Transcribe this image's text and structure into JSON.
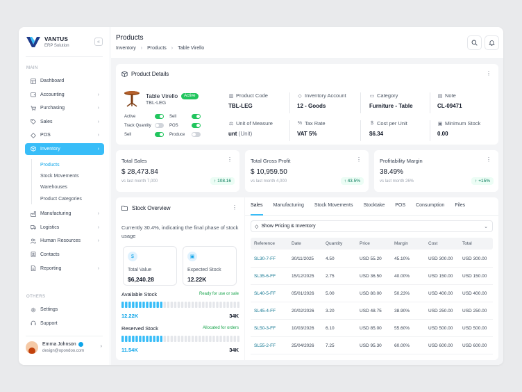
{
  "brand": {
    "name": "VANTUS",
    "subtitle": "ERP Solution",
    "collapse": "«"
  },
  "sidebar": {
    "main_label": "MAIN",
    "items": [
      {
        "label": "Dashboard"
      },
      {
        "label": "Accounting"
      },
      {
        "label": "Purchasing"
      },
      {
        "label": "Sales"
      },
      {
        "label": "POS"
      },
      {
        "label": "Inventory"
      }
    ],
    "inventory_sub": [
      {
        "label": "Products"
      },
      {
        "label": "Stock Movements"
      },
      {
        "label": "Warehouses"
      },
      {
        "label": "Product Categories"
      }
    ],
    "items2": [
      {
        "label": "Manufacturing"
      },
      {
        "label": "Logistics"
      },
      {
        "label": "Human Resources"
      },
      {
        "label": "Contacts"
      },
      {
        "label": "Reporting"
      }
    ],
    "others_label": "OTHERS",
    "others": [
      {
        "label": "Settings"
      },
      {
        "label": "Support"
      }
    ]
  },
  "user": {
    "name": "Emma Johnson",
    "email": "design@opondoo.com"
  },
  "header": {
    "title": "Products",
    "breadcrumb": [
      "Inventory",
      "Products",
      "Table Virello"
    ]
  },
  "product": {
    "section_title": "Product Details",
    "name": "Table Virello",
    "status": "Active",
    "code": "TBL-LEG",
    "toggles": [
      {
        "label": "Active",
        "on": true
      },
      {
        "label": "Sell",
        "on": true
      },
      {
        "label": "Track Quantity",
        "on": false
      },
      {
        "label": "POS",
        "on": true
      },
      {
        "label": "Sell",
        "on": true
      },
      {
        "label": "Produce",
        "on": false
      }
    ],
    "fields": [
      {
        "label": "Product Code",
        "value": "TBL-LEG",
        "icon": "barcode-icon"
      },
      {
        "label": "Inventory Account",
        "value": "12 - Goods",
        "icon": "tag-icon"
      },
      {
        "label": "Category",
        "value": "Furniture - Table",
        "icon": "folder-icon"
      },
      {
        "label": "Note",
        "value": "CL-09471",
        "icon": "note-icon"
      },
      {
        "label": "Unit of Measure",
        "value": "unt",
        "value_extra": "(Unit)",
        "icon": "scale-icon"
      },
      {
        "label": "Tax Rate",
        "value": "VAT 5%",
        "icon": "percent-icon"
      },
      {
        "label": "Cost per Unit",
        "value": "$6.34",
        "icon": "dollar-icon"
      },
      {
        "label": "Minimum Stock",
        "value": "0.00",
        "icon": "box-icon"
      }
    ]
  },
  "metrics": [
    {
      "label": "Total Sales",
      "value": "$ 28,473.84",
      "sub": "vs last month 7,000",
      "change": "108.16"
    },
    {
      "label": "Total Gross Profit",
      "value": "$ 10,959.50",
      "sub": "vs last month 4,000",
      "change": "43.5%"
    },
    {
      "label": "Profitability Margin",
      "value": "38.49%",
      "sub": "vs last month 26%",
      "change": "+15%"
    }
  ],
  "stock": {
    "title": "Stock Overview",
    "description": "Currently 30.4%, indicating the final phase of stock usage",
    "total_label": "Total Value",
    "total_value": "$6,240.28",
    "expected_label": "Expected Stock",
    "expected_value": "12.22K",
    "available_label": "Available Stock",
    "available_note": "Ready for use or sale",
    "available_value": "12.22K",
    "available_max": "34K",
    "available_fraction": 0.36,
    "reserved_label": "Reserved Stock",
    "reserved_note": "Allocated for orders",
    "reserved_value": "11.54K",
    "reserved_max": "34K",
    "reserved_fraction": 0.34,
    "accent": "#38bdf8"
  },
  "table": {
    "tabs": [
      "Sales",
      "Manufacturing",
      "Stock Movements",
      "Stocktake",
      "POS",
      "Consumption",
      "Files"
    ],
    "active_tab": "Sales",
    "pricing_toggle": "Show Pricing & Inventory",
    "columns": [
      "Reference",
      "Date",
      "Quantity",
      "Price",
      "Margin",
      "Cost",
      "Total"
    ],
    "rows": [
      [
        "SL30-7-FF",
        "30/11/2025",
        "4.50",
        "USD 55.20",
        "45.10%",
        "USD 300.00",
        "USD 300.00"
      ],
      [
        "SL35-6-FF",
        "15/12/2025",
        "2.75",
        "USD 36.50",
        "40.00%",
        "USD 150.00",
        "USD 150.00"
      ],
      [
        "SL40-5-FF",
        "05/01/2026",
        "5.00",
        "USD 80.00",
        "50.23%",
        "USD 400.00",
        "USD 400.00"
      ],
      [
        "SL45-4-FF",
        "20/02/2026",
        "3.20",
        "USD 48.75",
        "38.90%",
        "USD 250.00",
        "USD 250.00"
      ],
      [
        "SL50-3-FF",
        "10/03/2026",
        "6.10",
        "USD 85.00",
        "55.60%",
        "USD 500.00",
        "USD 500.00"
      ],
      [
        "SL55-2-FF",
        "25/04/2026",
        "7.25",
        "USD 95.30",
        "60.00%",
        "USD 600.00",
        "USD 600.00"
      ]
    ]
  },
  "colors": {
    "accent": "#38bdf8",
    "success": "#22c55e",
    "link": "#0e7490"
  }
}
